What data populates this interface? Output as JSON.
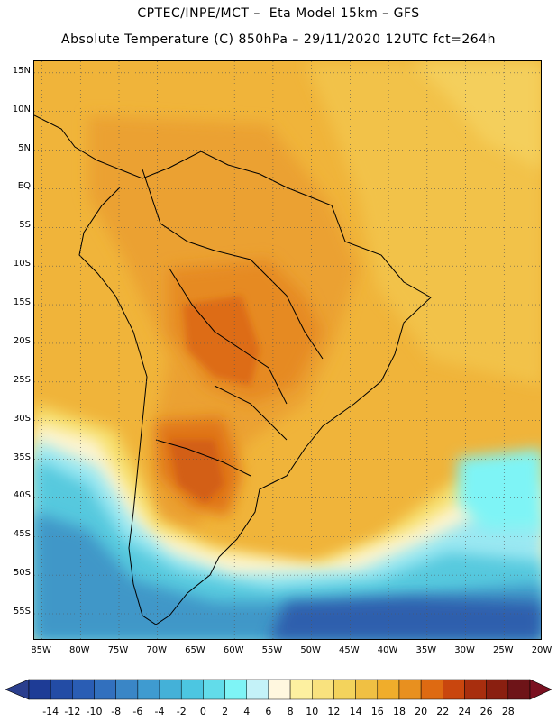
{
  "header": {
    "line1": "CPTEC/INPE/MCT –  Eta Model 15km – GFS",
    "line2": "Absolute Temperature (C) 850hPa – 29/11/2020 12UTC fct=264h"
  },
  "map": {
    "lat_labels": [
      "15N",
      "10N",
      "5N",
      "EQ",
      "5S",
      "10S",
      "15S",
      "20S",
      "25S",
      "30S",
      "35S",
      "40S",
      "45S",
      "50S",
      "55S"
    ],
    "lon_labels": [
      "85W",
      "80W",
      "75W",
      "70W",
      "65W",
      "60W",
      "55W",
      "50W",
      "45W",
      "40W",
      "35W",
      "30W",
      "25W",
      "20W"
    ],
    "lat_values": [
      15,
      10,
      5,
      0,
      -5,
      -10,
      -15,
      -20,
      -25,
      -30,
      -35,
      -40,
      -45,
      -50,
      -55
    ],
    "lon_values": [
      -85,
      -80,
      -75,
      -70,
      -65,
      -60,
      -55,
      -50,
      -45,
      -40,
      -35,
      -30,
      -25,
      -20
    ],
    "extent": {
      "lon_min": -86,
      "lon_max": -20,
      "lat_min": -58.5,
      "lat_max": 16.5
    },
    "gridlines": "dotted"
  },
  "colorbar": {
    "labels": [
      "-14",
      "-12",
      "-10",
      "-8",
      "-6",
      "-4",
      "-2",
      "0",
      "2",
      "4",
      "6",
      "8",
      "10",
      "12",
      "14",
      "16",
      "18",
      "20",
      "22",
      "24",
      "26",
      "28"
    ],
    "colors": [
      "#1e3c96",
      "#234ca5",
      "#2a5db4",
      "#3270be",
      "#3a86c6",
      "#3f9bd0",
      "#44b1d8",
      "#4cc6e1",
      "#62dcea",
      "#7ef4f6",
      "#c4f2f8",
      "#fff7df",
      "#fdf0a0",
      "#f9e27e",
      "#f3d35c",
      "#f0c043",
      "#f0ad2b",
      "#e8901f",
      "#de6a12",
      "#c9460e",
      "#a82e0e",
      "#8a1f10",
      "#6e1418"
    ],
    "under_color": "#2b3f8e",
    "over_color": "#7a1020"
  }
}
